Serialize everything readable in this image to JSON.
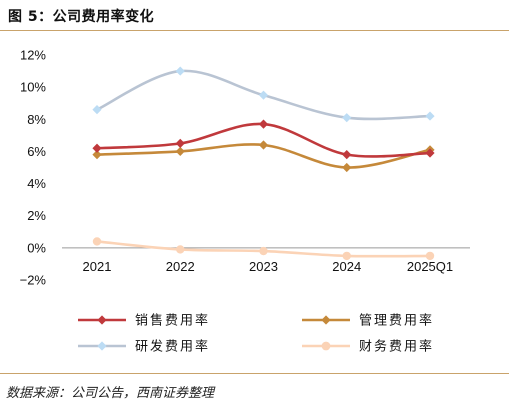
{
  "figure": {
    "title": "图 5：公司费用率变化",
    "source": "数据来源：公司公告，西南证券整理"
  },
  "chart_data": {
    "type": "line",
    "categories": [
      "2021",
      "2022",
      "2023",
      "2024",
      "2025Q1"
    ],
    "ylim": [
      -2,
      12
    ],
    "yticks": [
      -2,
      0,
      2,
      4,
      6,
      8,
      10,
      12
    ],
    "ytick_labels": [
      "−2%",
      "0%",
      "2%",
      "4%",
      "6%",
      "8%",
      "10%",
      "12%"
    ],
    "grid": false,
    "smooth": true,
    "legend_position": "bottom",
    "series": [
      {
        "name": "销售费用率",
        "values": [
          6.2,
          6.5,
          7.7,
          5.8,
          5.9
        ],
        "color": "#c0393c",
        "marker": "diamond"
      },
      {
        "name": "管理费用率",
        "values": [
          5.8,
          6.0,
          6.4,
          5.0,
          6.1
        ],
        "color": "#c5893a",
        "marker": "diamond"
      },
      {
        "name": "研发费用率",
        "values": [
          8.6,
          11.0,
          9.5,
          8.1,
          8.2
        ],
        "color": "#b9c4d3",
        "marker": "diamond",
        "marker_color": "#bcdcf4"
      },
      {
        "name": "财务费用率",
        "values": [
          0.4,
          -0.1,
          -0.2,
          -0.5,
          -0.5
        ],
        "color": "#fbd3b6",
        "marker": "circle"
      }
    ]
  }
}
